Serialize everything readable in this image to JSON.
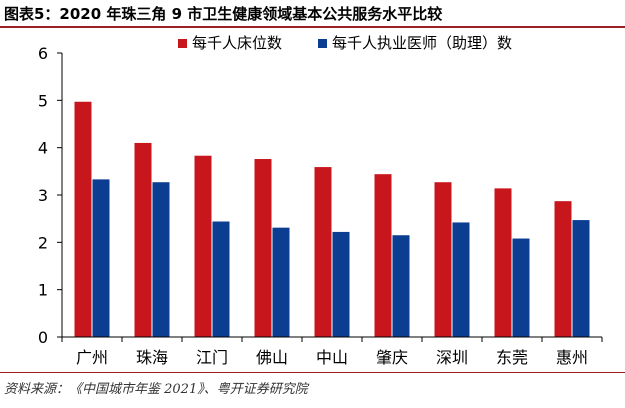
{
  "title": "图表5：2020 年珠三角 9 市卫生健康领域基本公共服务水平比较",
  "source": "资料来源：《中国城市年鉴 2021》、粤开证券研究院",
  "colors": {
    "series1": "#c8161d",
    "series2": "#0b3d91",
    "accent": "#9c1f24"
  },
  "chart_data": {
    "type": "bar",
    "title": "",
    "xlabel": "",
    "ylabel": "",
    "categories": [
      "广州",
      "珠海",
      "江门",
      "佛山",
      "中山",
      "肇庆",
      "深圳",
      "东莞",
      "惠州"
    ],
    "series": [
      {
        "name": "每千人床位数",
        "color": "#c8161d",
        "values": [
          4.97,
          4.1,
          3.83,
          3.76,
          3.59,
          3.44,
          3.27,
          3.14,
          2.87
        ]
      },
      {
        "name": "每千人执业医师（助理）数",
        "color": "#0b3d91",
        "values": [
          3.33,
          3.27,
          2.44,
          2.31,
          2.22,
          2.15,
          2.42,
          2.08,
          2.47
        ]
      }
    ],
    "ylim": [
      0,
      6
    ],
    "yticks": [
      "0",
      "1",
      "2",
      "3",
      "4",
      "5",
      "6"
    ],
    "grid": false,
    "legend": "top"
  }
}
